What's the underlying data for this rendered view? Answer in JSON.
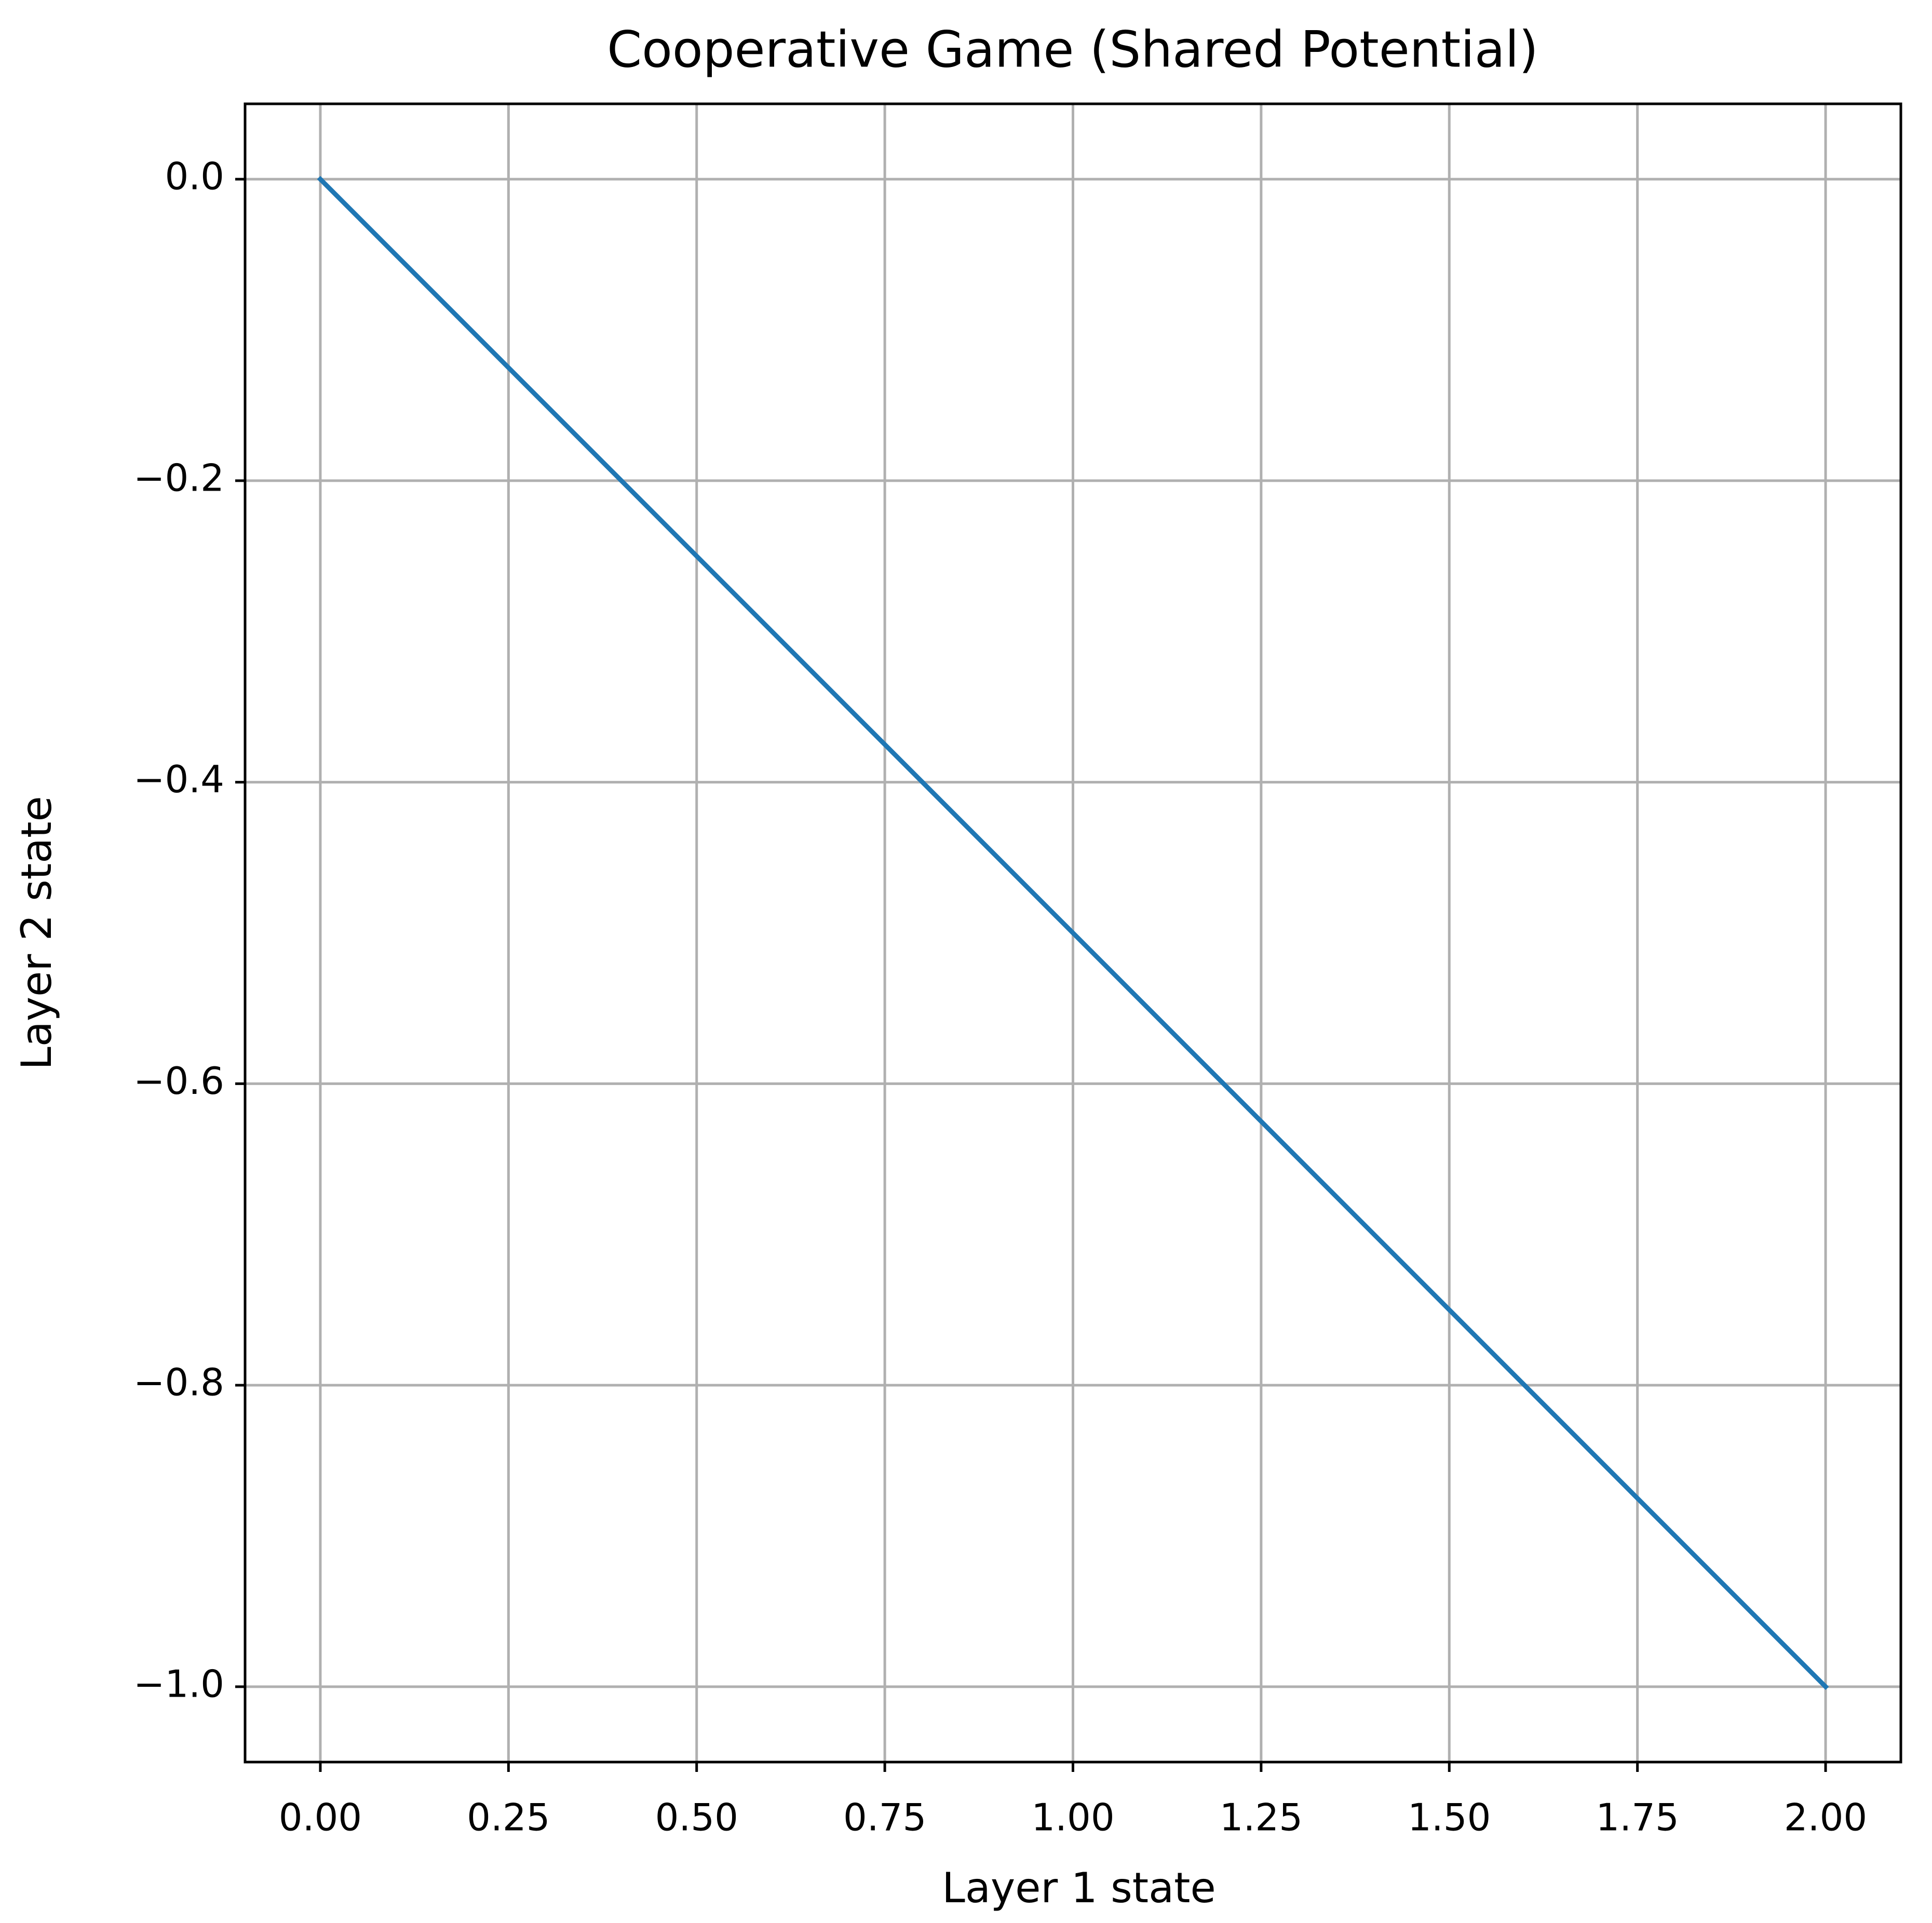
{
  "chart_data": {
    "type": "line",
    "title": "Cooperative Game (Shared Potential)",
    "xlabel": "Layer 1 state",
    "ylabel": "Layer 2 state",
    "x": [
      0,
      2
    ],
    "series": [
      {
        "color": "#1f77b4",
        "values": [
          0,
          -1
        ]
      }
    ],
    "xlim": [
      -0.1,
      2.1
    ],
    "ylim": [
      -1.05,
      0.05
    ],
    "xticks": [
      {
        "value": 0,
        "label": "0.00"
      },
      {
        "value": 0.25,
        "label": "0.25"
      },
      {
        "value": 0.5,
        "label": "0.50"
      },
      {
        "value": 0.75,
        "label": "0.75"
      },
      {
        "value": 1,
        "label": "1.00"
      },
      {
        "value": 1.25,
        "label": "1.25"
      },
      {
        "value": 1.5,
        "label": "1.50"
      },
      {
        "value": 1.75,
        "label": "1.75"
      },
      {
        "value": 2,
        "label": "2.00"
      }
    ],
    "yticks": [
      {
        "value": 0,
        "label": "0.0"
      },
      {
        "value": -0.2,
        "label": "−0.2"
      },
      {
        "value": -0.4,
        "label": "−0.4"
      },
      {
        "value": -0.6,
        "label": "−0.6"
      },
      {
        "value": -0.8,
        "label": "−0.8"
      },
      {
        "value": -1,
        "label": "−1.0"
      }
    ],
    "grid": true
  }
}
